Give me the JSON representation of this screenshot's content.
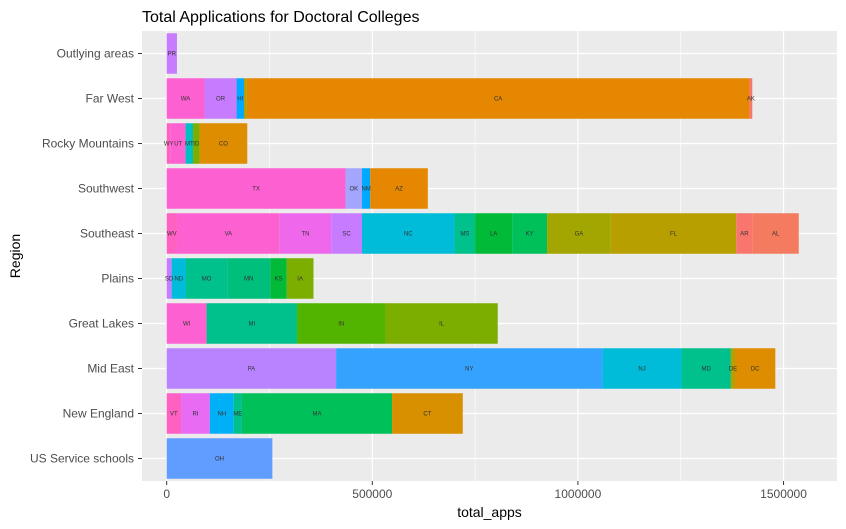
{
  "chart_data": {
    "type": "bar",
    "orientation": "horizontal",
    "stacked": true,
    "title": "Total Applications for Doctoral Colleges",
    "xlabel": "total_apps",
    "ylabel": "Region",
    "xlim": [
      -60000,
      1630000
    ],
    "xticks": [
      0,
      500000,
      1000000,
      1500000
    ],
    "xtick_labels": [
      "0",
      "500000",
      "1000000",
      "1500000"
    ],
    "grid": true,
    "legend": "none",
    "categories": [
      "Outlying areas",
      "Far West",
      "Rocky Mountains",
      "Southwest",
      "Southeast",
      "Plains",
      "Great Lakes",
      "Mid East",
      "New England",
      "US Service schools"
    ],
    "bars": [
      {
        "region": "Outlying areas",
        "segments": [
          {
            "label": "PR",
            "value": 25000,
            "color": "#c77cff"
          }
        ]
      },
      {
        "region": "Far West",
        "segments": [
          {
            "label": "WA",
            "value": 92000,
            "color": "#fd61d1"
          },
          {
            "label": "OR",
            "value": 78000,
            "color": "#c77cff"
          },
          {
            "label": "HI",
            "value": 18000,
            "color": "#00a9ff"
          },
          {
            "label": "",
            "value": 7000,
            "color": "#b79f00"
          },
          {
            "label": "CA",
            "value": 1222000,
            "color": "#e58700"
          },
          {
            "label": "AK",
            "value": 7000,
            "color": "#f8766d"
          }
        ]
      },
      {
        "region": "Rocky Mountains",
        "segments": [
          {
            "label": "WY",
            "value": 10000,
            "color": "#ff61c3"
          },
          {
            "label": "UT",
            "value": 36000,
            "color": "#fd61d1"
          },
          {
            "label": "MT",
            "value": 18000,
            "color": "#00bfc4"
          },
          {
            "label": "ID",
            "value": 16000,
            "color": "#7cae00"
          },
          {
            "label": "CO",
            "value": 116000,
            "color": "#de8c00"
          }
        ]
      },
      {
        "region": "Southwest",
        "segments": [
          {
            "label": "TX",
            "value": 435000,
            "color": "#fd61d1"
          },
          {
            "label": "OK",
            "value": 40000,
            "color": "#a3a5ff"
          },
          {
            "label": "NM",
            "value": 20000,
            "color": "#00a9ff"
          },
          {
            "label": "AZ",
            "value": 140000,
            "color": "#e58700"
          }
        ]
      },
      {
        "region": "Southeast",
        "segments": [
          {
            "label": "WV",
            "value": 25000,
            "color": "#ff61c3"
          },
          {
            "label": "VA",
            "value": 250000,
            "color": "#fd61d1"
          },
          {
            "label": "TN",
            "value": 125000,
            "color": "#ef67eb"
          },
          {
            "label": "SC",
            "value": 75000,
            "color": "#c77cff"
          },
          {
            "label": "NC",
            "value": 225000,
            "color": "#00bcd8"
          },
          {
            "label": "MS",
            "value": 50000,
            "color": "#00c08b"
          },
          {
            "label": "LA",
            "value": 90000,
            "color": "#00ba38"
          },
          {
            "label": "KY",
            "value": 85000,
            "color": "#00c05a"
          },
          {
            "label": "GA",
            "value": 155000,
            "color": "#a3a500"
          },
          {
            "label": "FL",
            "value": 305000,
            "color": "#b79f00"
          },
          {
            "label": "AR",
            "value": 40000,
            "color": "#f8766d"
          },
          {
            "label": "AL",
            "value": 112000,
            "color": "#f57b60"
          }
        ]
      },
      {
        "region": "Plains",
        "segments": [
          {
            "label": "SD",
            "value": 12000,
            "color": "#c77cff"
          },
          {
            "label": "ND",
            "value": 35000,
            "color": "#00bcd8"
          },
          {
            "label": "MO",
            "value": 100000,
            "color": "#00c08b"
          },
          {
            "label": "MN",
            "value": 105000,
            "color": "#00bf7d"
          },
          {
            "label": "KS",
            "value": 40000,
            "color": "#00ba38"
          },
          {
            "label": "IA",
            "value": 65000,
            "color": "#7cae00"
          }
        ]
      },
      {
        "region": "Great Lakes",
        "segments": [
          {
            "label": "WI",
            "value": 97000,
            "color": "#fd61d1"
          },
          {
            "label": "MI",
            "value": 220000,
            "color": "#00c08b"
          },
          {
            "label": "IN",
            "value": 215000,
            "color": "#53b400"
          },
          {
            "label": "IL",
            "value": 273000,
            "color": "#7cae00"
          }
        ]
      },
      {
        "region": "Mid East",
        "segments": [
          {
            "label": "PA",
            "value": 412000,
            "color": "#b983ff"
          },
          {
            "label": "NY",
            "value": 648000,
            "color": "#35a2ff"
          },
          {
            "label": "NJ",
            "value": 192000,
            "color": "#00bcd8"
          },
          {
            "label": "MD",
            "value": 120000,
            "color": "#00c08b"
          },
          {
            "label": "DE",
            "value": 10000,
            "color": "#b79f00"
          },
          {
            "label": "DC",
            "value": 98000,
            "color": "#de8c00"
          }
        ]
      },
      {
        "region": "New England",
        "segments": [
          {
            "label": "VT",
            "value": 35000,
            "color": "#ff61c3"
          },
          {
            "label": "RI",
            "value": 70000,
            "color": "#e76bf3"
          },
          {
            "label": "NH",
            "value": 58000,
            "color": "#00b0f6"
          },
          {
            "label": "ME",
            "value": 20000,
            "color": "#00c08b"
          },
          {
            "label": "MA",
            "value": 365000,
            "color": "#00c05a"
          },
          {
            "label": "CT",
            "value": 172000,
            "color": "#d89000"
          }
        ]
      },
      {
        "region": "US Service schools",
        "segments": [
          {
            "label": "OH",
            "value": 257000,
            "color": "#619cff"
          }
        ]
      }
    ]
  },
  "colors": {
    "panel_bg": "#ebebeb",
    "grid_major": "#ffffff",
    "tick_mark": "#333333"
  }
}
